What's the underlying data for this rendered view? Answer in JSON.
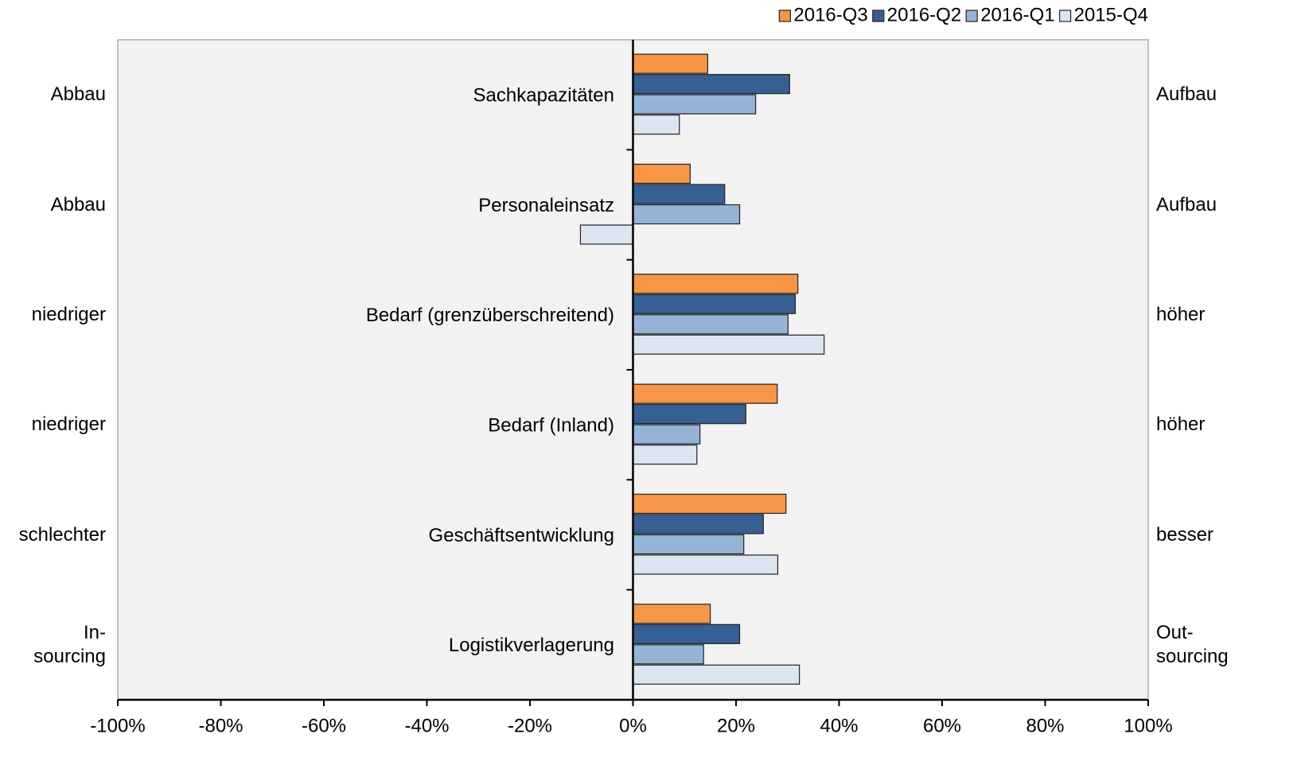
{
  "chart_data": {
    "type": "hbar",
    "categories": [
      "Sachkapazitäten",
      "Personaleinsatz",
      "Bedarf (grenzüberschreitend)",
      "Bedarf (Inland)",
      "Geschäftsentwicklung",
      "Logistikverlagerung"
    ],
    "left_labels": [
      "Abbau",
      "Abbau",
      "niedriger",
      "niedriger",
      "schlechter",
      "In-\nsourcing"
    ],
    "right_labels": [
      "Aufbau",
      "Aufbau",
      "höher",
      "höher",
      "besser",
      "Out-\nsourcing"
    ],
    "series": [
      {
        "name": "2016-Q3",
        "color": "#f79646",
        "values": [
          14.5,
          11.1,
          32.0,
          28.0,
          29.7,
          15.0
        ]
      },
      {
        "name": "2016-Q2",
        "color": "#375f93",
        "values": [
          30.4,
          17.8,
          31.5,
          21.9,
          25.3,
          20.7
        ]
      },
      {
        "name": "2016-Q1",
        "color": "#95b3d7",
        "values": [
          23.8,
          20.7,
          30.1,
          13.0,
          21.5,
          13.7
        ]
      },
      {
        "name": "2015-Q4",
        "color": "#dce6f2",
        "values": [
          9.0,
          -10.2,
          37.1,
          12.4,
          28.1,
          32.3
        ]
      }
    ],
    "xlim": [
      -100,
      100
    ],
    "xticks": [
      {
        "value": -100,
        "label": "-100%"
      },
      {
        "value": -80,
        "label": "-80%"
      },
      {
        "value": -60,
        "label": "-60%"
      },
      {
        "value": -40,
        "label": "-40%"
      },
      {
        "value": -20,
        "label": "-20%"
      },
      {
        "value": 0,
        "label": "0%"
      },
      {
        "value": 20,
        "label": "20%"
      },
      {
        "value": 40,
        "label": "40%"
      },
      {
        "value": 60,
        "label": "60%"
      },
      {
        "value": 80,
        "label": "80%"
      },
      {
        "value": 100,
        "label": "100%"
      }
    ],
    "legend": "top-right"
  }
}
